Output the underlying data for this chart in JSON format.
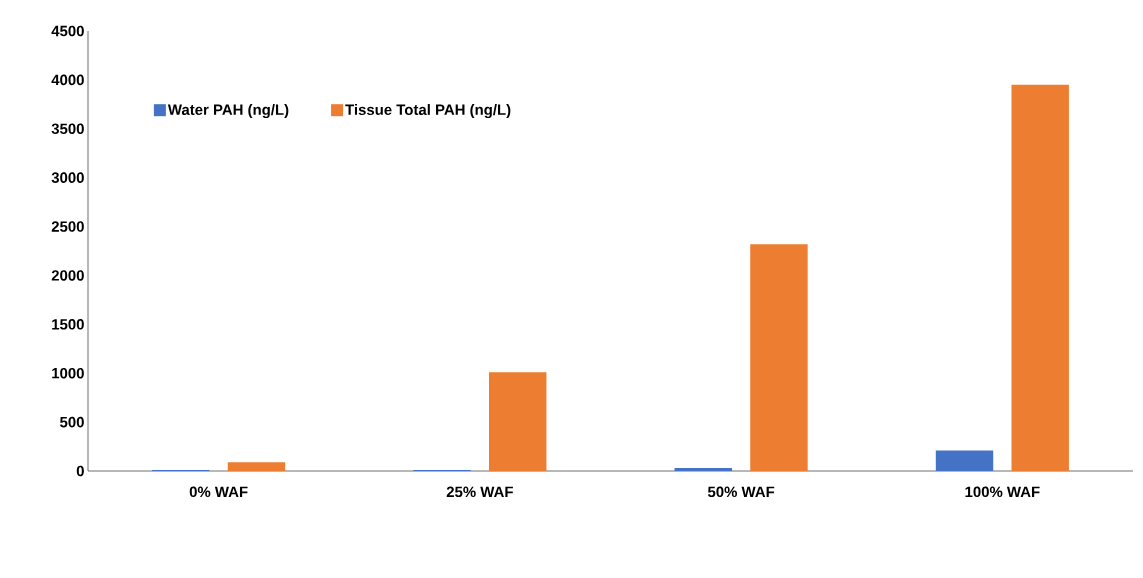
{
  "chart_data": {
    "type": "bar",
    "categories": [
      "0% WAF",
      "25% WAF",
      "50% WAF",
      "100% WAF"
    ],
    "series": [
      {
        "name": "Water PAH (ng/L)",
        "color": "#4472c4",
        "values": [
          10,
          10,
          30,
          210
        ]
      },
      {
        "name": "Tissue Total PAH (ng/L)",
        "color": "#ed7d31",
        "values": [
          90,
          1010,
          2320,
          3950
        ]
      }
    ],
    "ylim": [
      0,
      4500
    ],
    "yticks": [
      0,
      500,
      1000,
      1500,
      2000,
      2500,
      3000,
      3500,
      4000,
      4500
    ],
    "grid": false,
    "legend": "top left"
  }
}
